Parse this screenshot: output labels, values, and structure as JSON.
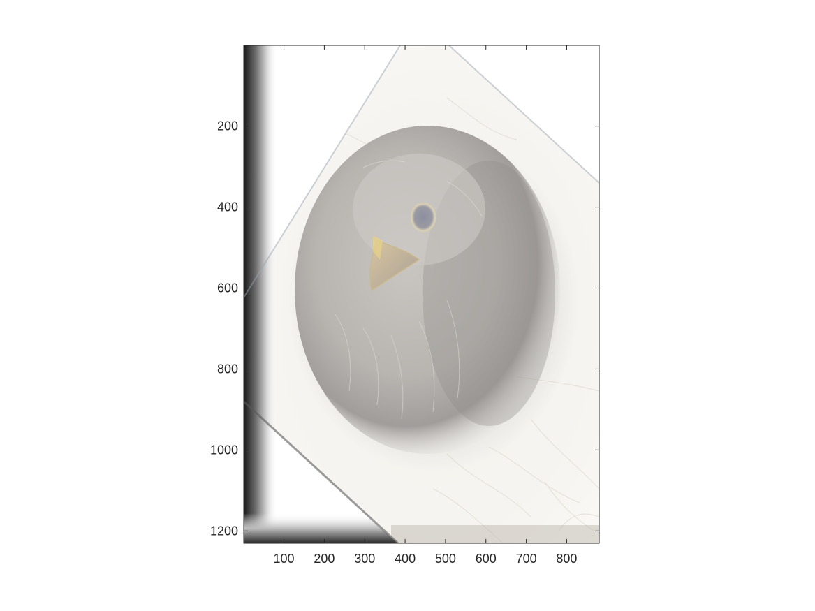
{
  "figure": {
    "background_color": "#ffffff",
    "axes_color": "#262626",
    "image_description_hidden": true
  },
  "axes": {
    "x_ticks": [
      {
        "value": 100,
        "label": "100"
      },
      {
        "value": 200,
        "label": "200"
      },
      {
        "value": 300,
        "label": "300"
      },
      {
        "value": 400,
        "label": "400"
      },
      {
        "value": 500,
        "label": "500"
      },
      {
        "value": 600,
        "label": "600"
      },
      {
        "value": 700,
        "label": "700"
      },
      {
        "value": 800,
        "label": "800"
      }
    ],
    "y_ticks": [
      {
        "value": 200,
        "label": "200"
      },
      {
        "value": 400,
        "label": "400"
      },
      {
        "value": 600,
        "label": "600"
      },
      {
        "value": 800,
        "label": "800"
      },
      {
        "value": 1000,
        "label": "1000"
      },
      {
        "value": 1200,
        "label": "1200"
      }
    ],
    "x_range": [
      0.5,
      880.5
    ],
    "y_range": [
      0.5,
      1230.5
    ],
    "y_direction": "reverse"
  }
}
